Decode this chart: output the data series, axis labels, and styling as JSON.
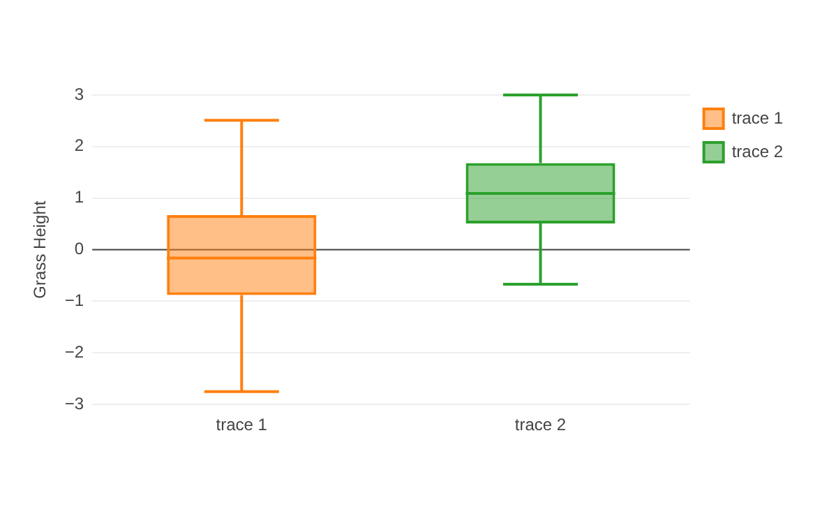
{
  "chart_data": {
    "type": "box",
    "ylabel": "Grass Height",
    "categories": [
      "trace 1",
      "trace 2"
    ],
    "series": [
      {
        "name": "trace 1",
        "color": "#ff7f0e",
        "boxes": [
          {
            "low": -2.75,
            "q1": -0.88,
            "median": -0.16,
            "q3": 0.67,
            "high": 2.51
          },
          null
        ]
      },
      {
        "name": "trace 2",
        "color": "#2ca02c",
        "boxes": [
          null,
          {
            "low": -0.67,
            "q1": 0.51,
            "median": 1.09,
            "q3": 1.68,
            "high": 3.0
          }
        ]
      }
    ],
    "ylim": [
      -3,
      3
    ],
    "yticks": [
      -3,
      -2,
      -1,
      0,
      1,
      2,
      3
    ],
    "ref_lines": [
      {
        "axis": "y",
        "value": 0,
        "color": "#444444"
      }
    ],
    "grid": "y",
    "legend": "top right"
  }
}
